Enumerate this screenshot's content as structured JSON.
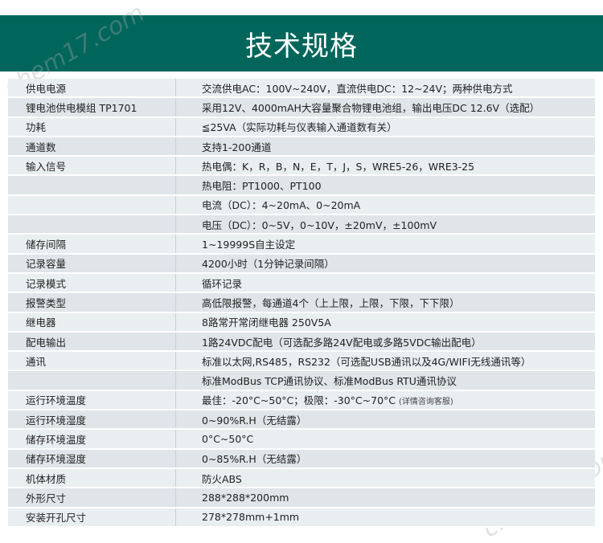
{
  "title": "技术规格",
  "watermark": "chem17.com",
  "rows": [
    {
      "k": "供电电源",
      "v": "交流供电AC：100V~240V，直流供电DC：12~24V；两种供电方式"
    },
    {
      "k": "锂电池供电模组 TP1701",
      "v": "采用12V、4000mAH大容量聚合物锂电池组，输出电压DC 12.6V（选配）"
    },
    {
      "k": "功耗",
      "v": "≦25VA（实际功耗与仪表输入通道数有关）"
    },
    {
      "k": "通道数",
      "v": "支持1-200通道"
    },
    {
      "k": "输入信号",
      "v": "热电偶：K，R，B，N，E，T，J，S，WRE5-26，WRE3-25"
    },
    {
      "k": "",
      "v": "热电阻：PT1000、PT100"
    },
    {
      "k": "",
      "v": "电流（DC）：4~20mA、0~20mA"
    },
    {
      "k": "",
      "v": "电压（DC）：0~5V，0~10V，±20mV，±100mV"
    },
    {
      "k": "储存间隔",
      "v": "1~19999S自主设定"
    },
    {
      "k": "记录容量",
      "v": "4200小时（1分钟记录间隔）"
    },
    {
      "k": "记录模式",
      "v": "循环记录"
    },
    {
      "k": "报警类型",
      "v": "高低限报警，每通道4个（上上限，上限，下限，下下限）"
    },
    {
      "k": "继电器",
      "v": "8路常开常闭继电器 250V5A"
    },
    {
      "k": "配电输出",
      "v": "1路24VDC配电（可选配多路24V配电或多路5VDC输出配电）"
    },
    {
      "k": "通讯",
      "v": "标准以太网,RS485，RS232（可选配USB通讯以及4G/WIFI无线通讯等）"
    },
    {
      "k": "",
      "v": "标准ModBus TCP通讯协议、标准ModBus RTU通讯协议"
    },
    {
      "k": "运行环境温度",
      "v": "最佳：-20°C~50°C；极限：-30°C~70°C",
      "note": "(详情咨询客服)"
    },
    {
      "k": "运行环境湿度",
      "v": "0~90%R.H（无结露）"
    },
    {
      "k": "储存环境温度",
      "v": "0°C~50°C"
    },
    {
      "k": "储存环境湿度",
      "v": "0~85%R.H（无结露）"
    },
    {
      "k": "机体材质",
      "v": "防火ABS"
    },
    {
      "k": "外形尺寸",
      "v": "288*288*200mm"
    },
    {
      "k": "安装开孔尺寸",
      "v": "278*278mm+1mm"
    }
  ]
}
